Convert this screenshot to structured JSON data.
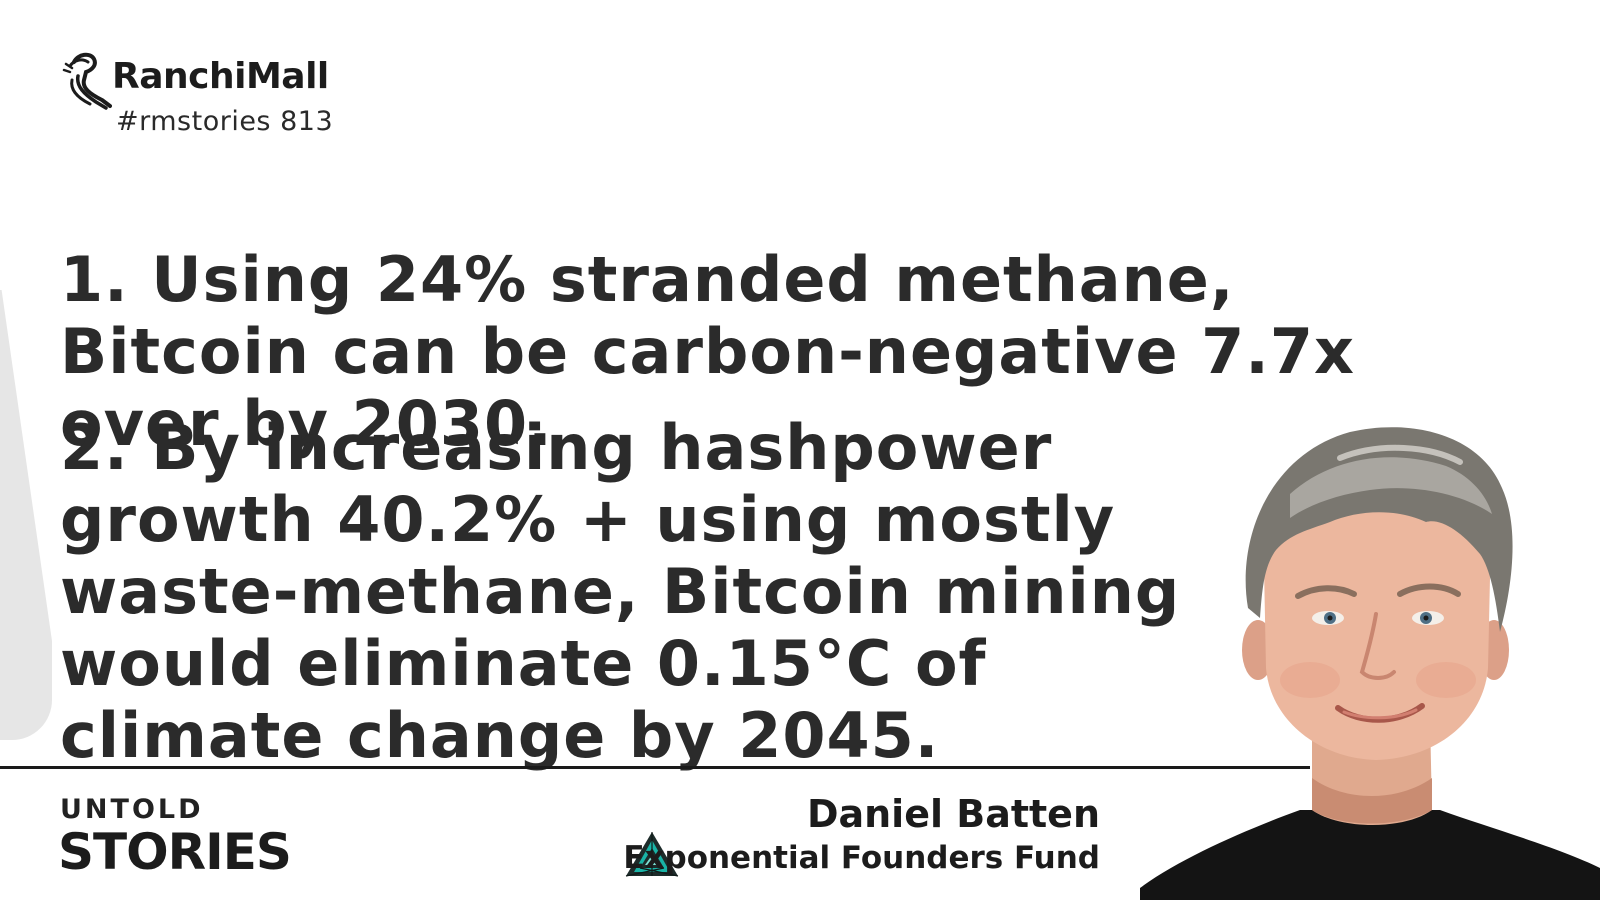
{
  "brand": {
    "name": "RanchiMall",
    "tag": "#rmstories 813",
    "logo_icon": "seahorse-logo-icon"
  },
  "quote": {
    "point1": "1. Using 24% stranded methane, Bitcoin can be carbon-negative 7.7x over by 2030.",
    "point2": "2. By increasing hashpower growth 40.2% + using mostly waste-methane, Bitcoin mining would eliminate 0.15°C of climate change by 2045."
  },
  "footer": {
    "series_top": "UNTOLD",
    "series_bottom": "STORIES",
    "speaker_name": "Daniel Batten",
    "speaker_org": "Exponential Founders Fund",
    "org_logo_icon": "triangle-spiral-logo-icon"
  },
  "colors": {
    "text": "#2b2b2b",
    "background": "#ffffff",
    "accent_teal": "#19b3a6"
  }
}
